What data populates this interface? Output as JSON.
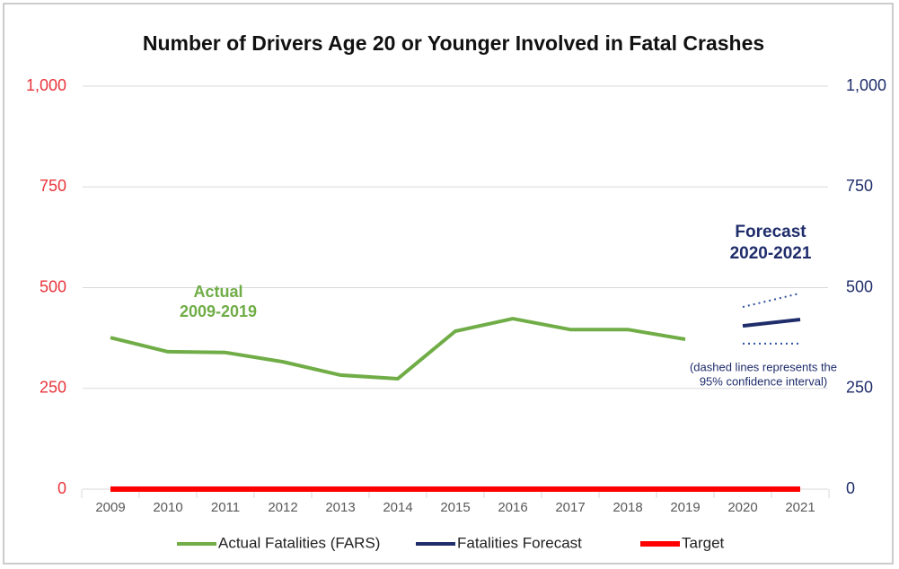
{
  "chart_data": {
    "type": "line",
    "title": "Number of Drivers Age 20 or Younger Involved in Fatal Crashes",
    "categories": [
      "2009",
      "2010",
      "2011",
      "2012",
      "2013",
      "2014",
      "2015",
      "2016",
      "2017",
      "2018",
      "2019",
      "2020",
      "2021"
    ],
    "series": [
      {
        "name": "Actual Fatalities (FARS)",
        "color": "#70ad47",
        "values": [
          376,
          341,
          339,
          316,
          283,
          274,
          392,
          423,
          396,
          396,
          372,
          null,
          null
        ]
      },
      {
        "name": "Fatalities Forecast",
        "color": "#1f2d6b",
        "axis": "y2",
        "values": [
          null,
          null,
          null,
          null,
          null,
          null,
          null,
          null,
          null,
          null,
          null,
          405,
          421
        ]
      },
      {
        "name": "Target",
        "color": "#ff0000",
        "values": [
          0,
          0,
          0,
          0,
          0,
          0,
          0,
          0,
          0,
          0,
          0,
          0,
          0
        ]
      }
    ],
    "confidence_interval": {
      "color": "#2e4f9e",
      "axis": "y2",
      "upper": [
        null,
        null,
        null,
        null,
        null,
        null,
        null,
        null,
        null,
        null,
        null,
        452,
        486
      ],
      "lower": [
        null,
        null,
        null,
        null,
        null,
        null,
        null,
        null,
        null,
        null,
        null,
        361,
        361
      ]
    },
    "ylim": [
      0,
      1000
    ],
    "yticks": [
      0,
      250,
      500,
      750,
      {
        "value": 1000,
        "label": "1,000"
      }
    ],
    "y2lim": [
      0,
      1000
    ],
    "y2ticks": [
      0,
      250,
      500,
      750,
      {
        "value": 1000,
        "label": "1,000"
      }
    ],
    "ytick_color": "#e8353b",
    "y2tick_color": "#1f2d6b",
    "grid": true,
    "legend": "bottom",
    "annotations": [
      {
        "lines": [
          "Actual",
          "2009-2019"
        ],
        "color": "#70ad47"
      },
      {
        "lines": [
          "Forecast",
          "2020-2021"
        ],
        "color": "#1f2d6b"
      },
      {
        "lines": [
          "(dashed lines represents the",
          "95% confidence interval)"
        ],
        "color": "#1f2d6b"
      }
    ]
  }
}
